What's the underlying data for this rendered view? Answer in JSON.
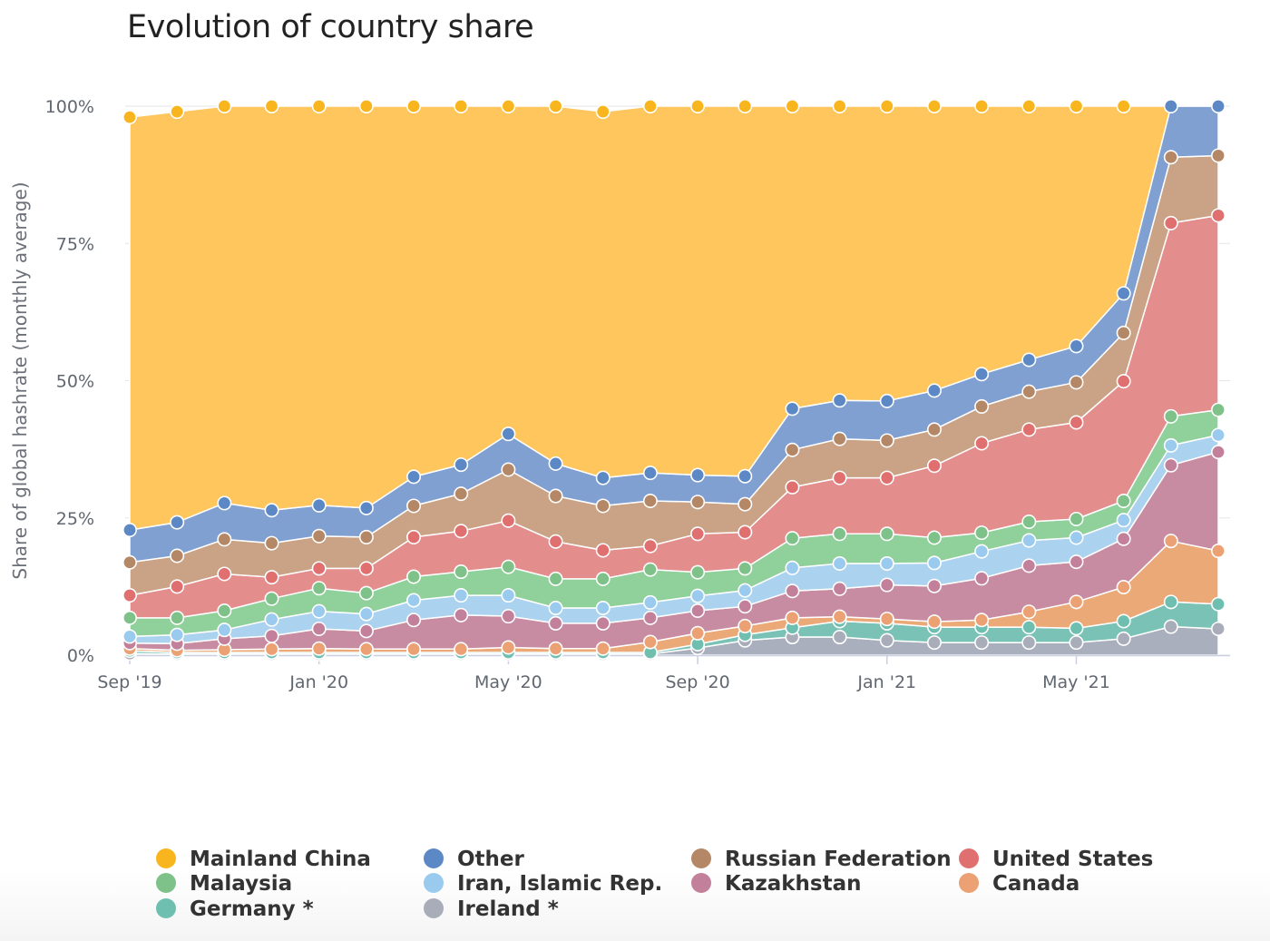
{
  "chart_data": {
    "type": "area",
    "stacked": true,
    "normalized": true,
    "title": "Evolution of country share",
    "ylabel": "Share of global hashrate (monthly average)",
    "xlabel": "",
    "ylim": [
      0,
      100
    ],
    "y_ticks": [
      "0%",
      "25%",
      "50%",
      "75%",
      "100%"
    ],
    "y_tick_values": [
      0,
      25,
      50,
      75,
      100
    ],
    "x": [
      "2019-09",
      "2019-10",
      "2019-11",
      "2019-12",
      "2020-01",
      "2020-02",
      "2020-03",
      "2020-04",
      "2020-05",
      "2020-06",
      "2020-07",
      "2020-08",
      "2020-09",
      "2020-10",
      "2020-11",
      "2020-12",
      "2021-01",
      "2021-02",
      "2021-03",
      "2021-04",
      "2021-05",
      "2021-06",
      "2021-07",
      "2021-08"
    ],
    "x_ticks": [
      {
        "label": "Sep '19",
        "x": "2019-09"
      },
      {
        "label": "Jan '20",
        "x": "2020-01"
      },
      {
        "label": "May '20",
        "x": "2020-05"
      },
      {
        "label": "Sep '20",
        "x": "2020-09"
      },
      {
        "label": "Jan '21",
        "x": "2021-01"
      },
      {
        "label": "May '21",
        "x": "2021-05"
      }
    ],
    "legend_position": "bottom",
    "series": [
      {
        "name": "Ireland *",
        "color": "#a7adbb",
        "values": [
          0.3,
          0.2,
          0.2,
          0.2,
          0.2,
          0.2,
          0.2,
          0.2,
          0.2,
          0.2,
          0.2,
          0.2,
          1.3,
          2.7,
          3.3,
          3.3,
          2.7,
          2.3,
          2.3,
          2.3,
          2.3,
          3.0,
          5.2,
          4.8
        ]
      },
      {
        "name": "Germany *",
        "color": "#76c1b4",
        "values": [
          0.5,
          0.3,
          0.3,
          0.3,
          0.3,
          0.3,
          0.3,
          0.3,
          0.3,
          0.3,
          0.3,
          0.3,
          0.7,
          1.0,
          1.7,
          2.9,
          3.1,
          2.8,
          2.8,
          2.8,
          2.6,
          3.2,
          4.5,
          4.5
        ]
      },
      {
        "name": "Canada",
        "color": "#eba775",
        "values": [
          0.4,
          0.4,
          0.5,
          0.6,
          0.7,
          0.6,
          0.6,
          0.6,
          0.9,
          0.7,
          0.7,
          1.9,
          2.0,
          1.6,
          1.8,
          0.8,
          0.8,
          1.0,
          1.3,
          2.8,
          4.8,
          6.2,
          11.1,
          9.7
        ]
      },
      {
        "name": "Kazakhstan",
        "color": "#c78aa0",
        "values": [
          1.0,
          1.2,
          2.0,
          2.4,
          3.6,
          3.3,
          5.3,
          6.2,
          5.7,
          4.6,
          4.6,
          4.4,
          4.1,
          3.6,
          4.9,
          5.1,
          6.2,
          6.5,
          7.6,
          8.4,
          7.3,
          8.8,
          13.8,
          18.0
        ]
      },
      {
        "name": "Iran, Islamic Rep.",
        "color": "#a9d2ef",
        "values": [
          1.2,
          1.6,
          1.6,
          3.0,
          3.2,
          3.1,
          3.6,
          3.6,
          3.8,
          2.8,
          2.8,
          2.8,
          2.7,
          2.9,
          4.2,
          4.6,
          3.9,
          4.2,
          4.9,
          4.6,
          4.4,
          3.4,
          3.6,
          3.1
        ]
      },
      {
        "name": "Malaysia",
        "color": "#8ecf98",
        "values": [
          3.4,
          3.1,
          3.5,
          3.8,
          4.2,
          3.8,
          4.3,
          4.3,
          5.2,
          5.3,
          5.3,
          6.0,
          4.3,
          4.0,
          5.4,
          5.4,
          5.4,
          4.6,
          3.4,
          3.4,
          3.4,
          3.5,
          5.3,
          4.6
        ]
      },
      {
        "name": "United States",
        "color": "#e28b8b",
        "values": [
          4.1,
          5.7,
          6.7,
          3.9,
          3.6,
          4.5,
          7.2,
          7.4,
          8.4,
          6.8,
          5.2,
          4.3,
          7.0,
          6.6,
          9.3,
          10.2,
          10.2,
          13.1,
          16.3,
          16.8,
          17.6,
          21.8,
          35.2,
          35.4
        ]
      },
      {
        "name": "Russian Federation",
        "color": "#c9a184",
        "values": [
          6.0,
          5.6,
          6.3,
          6.2,
          5.9,
          5.7,
          5.7,
          6.8,
          9.3,
          8.3,
          8.1,
          8.2,
          5.8,
          5.1,
          6.8,
          7.1,
          6.8,
          6.6,
          6.7,
          6.9,
          7.3,
          8.8,
          12.0,
          10.9
        ]
      },
      {
        "name": "Other",
        "color": "#7d9ed0",
        "values": [
          5.9,
          6.1,
          6.6,
          6.0,
          5.6,
          5.3,
          5.3,
          5.3,
          6.5,
          5.9,
          5.1,
          5.1,
          4.9,
          5.1,
          7.5,
          7.0,
          7.2,
          7.1,
          5.9,
          5.8,
          6.6,
          7.2,
          9.3,
          9.0
        ]
      },
      {
        "name": "Mainland China",
        "color": "#fec55a",
        "values": [
          75.2,
          74.8,
          72.3,
          73.6,
          72.7,
          73.2,
          67.5,
          65.3,
          59.7,
          65.1,
          66.7,
          66.8,
          67.2,
          67.4,
          55.1,
          53.6,
          53.7,
          51.8,
          48.8,
          46.2,
          43.7,
          34.1,
          0,
          0
        ]
      }
    ],
    "legend": [
      {
        "name": "Mainland China",
        "color": "#f9b51d",
        "col": 0,
        "row": 0
      },
      {
        "name": "Other",
        "color": "#5c89c5",
        "col": 1,
        "row": 0
      },
      {
        "name": "Russian Federation",
        "color": "#b48766",
        "col": 2,
        "row": 0
      },
      {
        "name": "United States",
        "color": "#df706f",
        "col": 3,
        "row": 0
      },
      {
        "name": "Malaysia",
        "color": "#7ec28a",
        "col": 0,
        "row": 1
      },
      {
        "name": "Iran, Islamic Rep.",
        "color": "#9acbee",
        "col": 1,
        "row": 1
      },
      {
        "name": "Kazakhstan",
        "color": "#c2809a",
        "col": 2,
        "row": 1
      },
      {
        "name": "Canada",
        "color": "#eba173",
        "col": 3,
        "row": 1
      },
      {
        "name": "Germany *",
        "color": "#6fbfb0",
        "col": 0,
        "row": 2
      },
      {
        "name": "Ireland *",
        "color": "#a9adba",
        "col": 1,
        "row": 2
      }
    ],
    "grid": true
  }
}
